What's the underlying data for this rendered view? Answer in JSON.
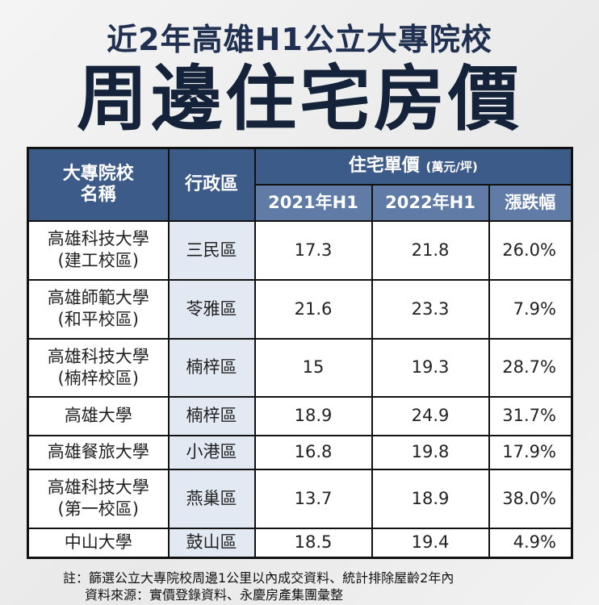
{
  "title": {
    "line1": "近2年高雄H1公立大專院校",
    "line2": "周邊住宅房價"
  },
  "table": {
    "headers": {
      "school": "大專院校\n名稱",
      "district": "行政區",
      "price": "住宅單價",
      "unit": "(萬元/坪)",
      "y2021": "2021年H1",
      "y2022": "2022年H1",
      "change": "漲跌幅"
    },
    "rows": [
      {
        "school": "高雄科技大學\n(建工校區)",
        "district": "三民區",
        "y2021": "17.3",
        "y2022": "21.8",
        "change": "26.0%"
      },
      {
        "school": "高雄師範大學\n(和平校區)",
        "district": "苓雅區",
        "y2021": "21.6",
        "y2022": "23.3",
        "change": "7.9%"
      },
      {
        "school": "高雄科技大學\n(楠梓校區)",
        "district": "楠梓區",
        "y2021": "15",
        "y2022": "19.3",
        "change": "28.7%"
      },
      {
        "school": "高雄大學",
        "district": "楠梓區",
        "y2021": "18.9",
        "y2022": "24.9",
        "change": "31.7%"
      },
      {
        "school": "高雄餐旅大學",
        "district": "小港區",
        "y2021": "16.8",
        "y2022": "19.8",
        "change": "17.9%"
      },
      {
        "school": "高雄科技大學\n(第一校區)",
        "district": "燕巢區",
        "y2021": "13.7",
        "y2022": "18.9",
        "change": "38.0%"
      },
      {
        "school": "中山大學",
        "district": "鼓山區",
        "y2021": "18.5",
        "y2022": "19.4",
        "change": "4.9%"
      }
    ]
  },
  "notes": {
    "note": "註：篩選公立大專院校周邊1公里以內成交資料、統計排除屋齡2年內",
    "source": "資料來源：實價登錄資料、永慶房產集團彙整"
  },
  "colors": {
    "header": "#3d5b88",
    "subheader": "#5f7ba6",
    "district_bg": "#e3e9f2",
    "title": "#15233a"
  }
}
